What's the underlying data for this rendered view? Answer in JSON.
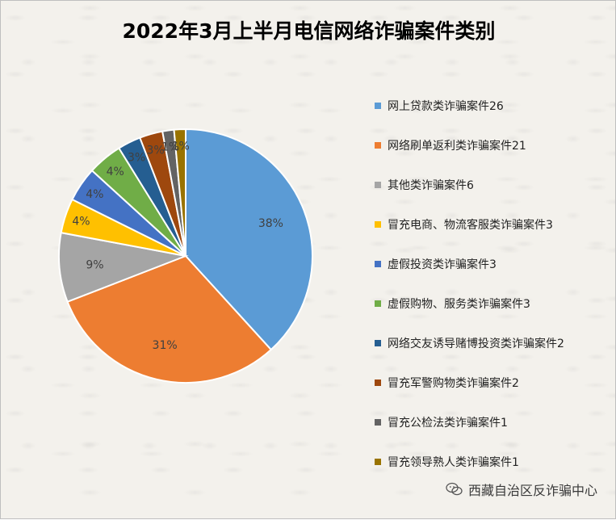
{
  "title": "2022年3月上半月电信网络诈骗案件类别",
  "watermark": "西藏自治区反诈骗中心",
  "chart_data": {
    "type": "pie",
    "title": "2022年3月上半月电信网络诈骗案件类别",
    "legend_position": "right",
    "slices": [
      {
        "label": "网上贷款类诈骗案件26",
        "value": 26,
        "percent_label": "38%",
        "color": "#5b9bd5"
      },
      {
        "label": "网络刷单返利类诈骗案件21",
        "value": 21,
        "percent_label": "31%",
        "color": "#ed7d31"
      },
      {
        "label": "其他类诈骗案件6",
        "value": 6,
        "percent_label": "9%",
        "color": "#a5a5a5"
      },
      {
        "label": "冒充电商、物流客服类诈骗案件3",
        "value": 3,
        "percent_label": "4%",
        "color": "#ffc000"
      },
      {
        "label": "虚假投资类诈骗案件3",
        "value": 3,
        "percent_label": "4%",
        "color": "#4472c4"
      },
      {
        "label": "虚假购物、服务类诈骗案件3",
        "value": 3,
        "percent_label": "4%",
        "color": "#70ad47"
      },
      {
        "label": "网络交友诱导赌博投资类诈骗案件2",
        "value": 2,
        "percent_label": "3%",
        "color": "#255e91"
      },
      {
        "label": "冒充军警购物类诈骗案件2",
        "value": 2,
        "percent_label": "3%",
        "color": "#9e480e"
      },
      {
        "label": "冒充公检法类诈骗案件1",
        "value": 1,
        "percent_label": "1%",
        "color": "#636363"
      },
      {
        "label": "冒充领导熟人类诈骗案件1",
        "value": 1,
        "percent_label": "1%",
        "color": "#997300"
      }
    ]
  }
}
